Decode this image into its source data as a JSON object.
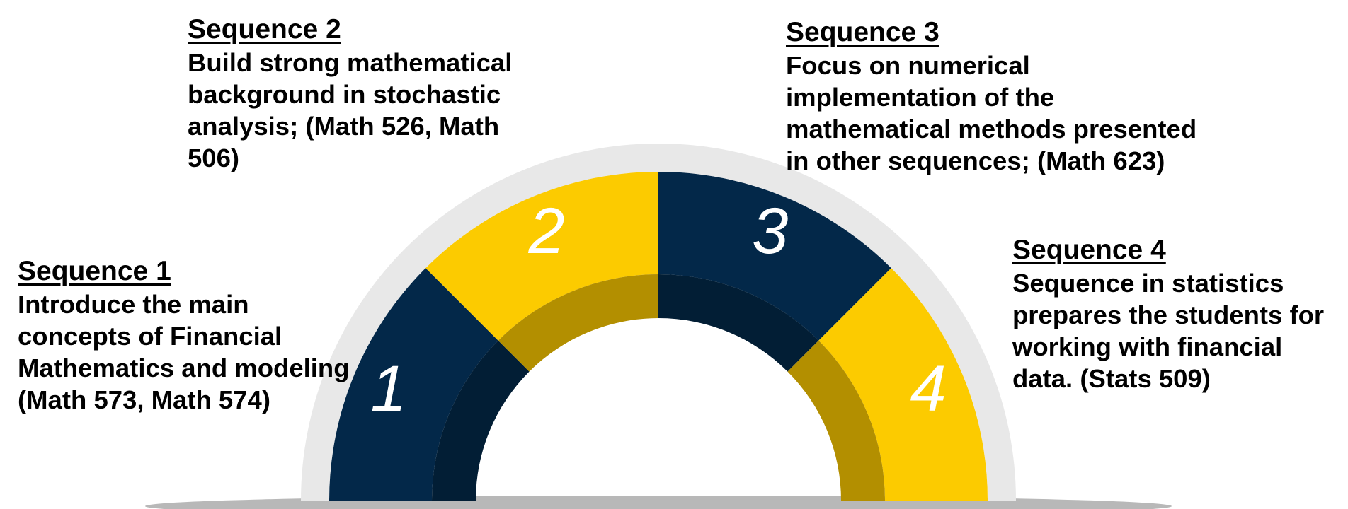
{
  "colors": {
    "navy": "#032849",
    "navy_inner": "#021e35",
    "gold": "#fccb00",
    "gold_inner": "#b38f00",
    "halo": "#e8e8e8",
    "shadow": "#b8b8b8",
    "text": "#000000"
  },
  "segments": [
    {
      "number": "1",
      "color": "navy"
    },
    {
      "number": "2",
      "color": "gold"
    },
    {
      "number": "3",
      "color": "navy"
    },
    {
      "number": "4",
      "color": "gold"
    }
  ],
  "sequences": [
    {
      "title": "Sequence 1",
      "lines": [
        "Introduce the main",
        "concepts of Financial",
        "Mathematics and modeling",
        "(Math 573, Math 574)"
      ]
    },
    {
      "title": "Sequence 2",
      "lines": [
        "Build strong mathematical",
        "background in stochastic",
        "analysis; (Math 526, Math",
        "506)"
      ]
    },
    {
      "title": "Sequence 3",
      "lines": [
        "Focus on numerical",
        "implementation of the",
        "mathematical methods presented",
        "in other sequences; (Math 623)"
      ]
    },
    {
      "title": "Sequence 4",
      "lines": [
        "Sequence in statistics",
        "prepares the students for",
        "working with financial",
        "data. (Stats 509)"
      ]
    }
  ]
}
